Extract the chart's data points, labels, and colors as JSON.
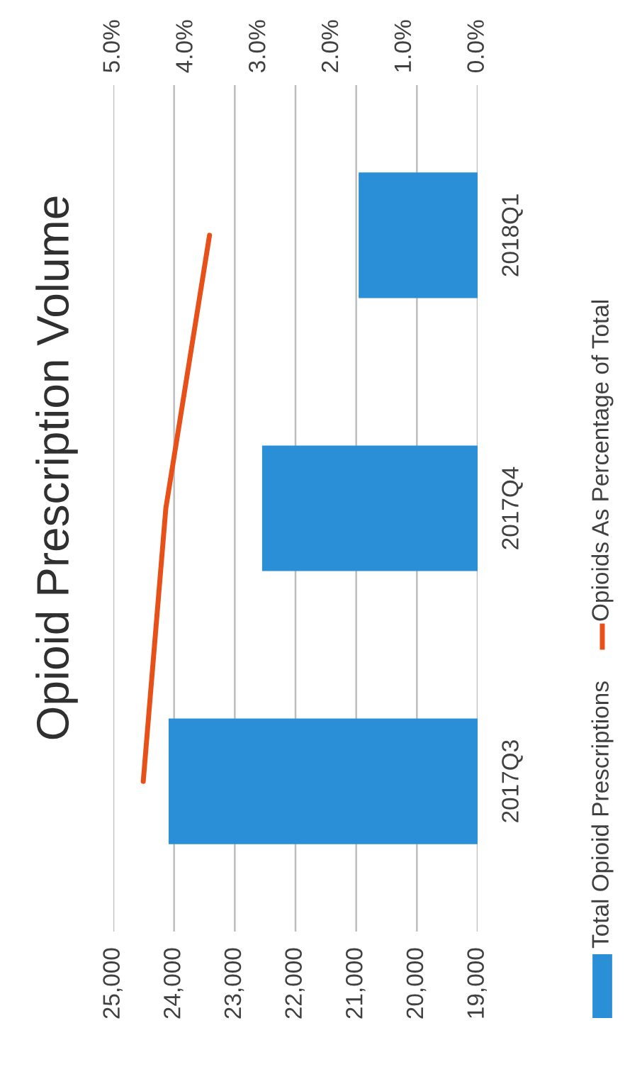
{
  "chart_data": {
    "type": "bar",
    "title": "Opioid Prescription Volume",
    "orientation": "horizontal",
    "categories": [
      "2018Q1",
      "2017Q4",
      "2017Q3"
    ],
    "series": [
      {
        "name": "Total Opioid Prescriptions",
        "color": "#2b8fd8",
        "values": [
          20960,
          22550,
          24090
        ]
      },
      {
        "name": "Opioids As Percentage of Total",
        "type": "line",
        "axis": "x2",
        "color": "#e8501a",
        "values": [
          3.68,
          4.28,
          4.59
        ]
      }
    ],
    "xlim": [
      25000,
      19000
    ],
    "xticks": [
      {
        "value": 25000,
        "label": "25,000"
      },
      {
        "value": 24000,
        "label": "24,000"
      },
      {
        "value": 23000,
        "label": "23,000"
      },
      {
        "value": 22000,
        "label": "22,000"
      },
      {
        "value": 21000,
        "label": "21,000"
      },
      {
        "value": 20000,
        "label": "20,000"
      },
      {
        "value": 19000,
        "label": "19,000"
      }
    ],
    "x2lim": [
      5,
      0
    ],
    "x2ticks": [
      {
        "value": 5,
        "label": "5.0%"
      },
      {
        "value": 4,
        "label": "4.0%"
      },
      {
        "value": 3,
        "label": "3.0%"
      },
      {
        "value": 2,
        "label": "2.0%"
      },
      {
        "value": 1,
        "label": "1.0%"
      },
      {
        "value": 0,
        "label": "0.0%"
      }
    ],
    "grid": "x",
    "legend": "right"
  }
}
